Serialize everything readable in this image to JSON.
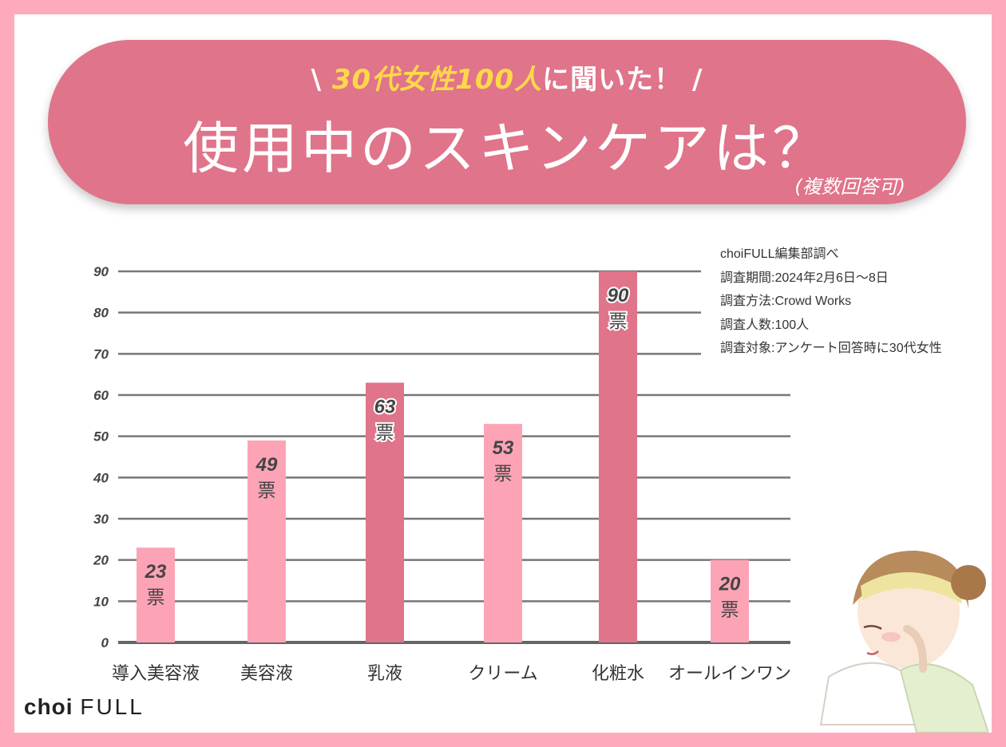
{
  "banner": {
    "subtitle_prefix": "\\ ",
    "subtitle_highlight_1": "30代女性100人",
    "subtitle_mid": "に聞いた！",
    "subtitle_suffix": " /",
    "title": "使用中のスキンケアは？",
    "note": "(複数回答可)"
  },
  "survey_info": {
    "source": "choiFULL編集部調べ",
    "period": "調査期間:2024年2月6日〜8日",
    "method": "調査方法:Crowd Works",
    "count": "調査人数:100人",
    "target": "調査対象:アンケート回答時に30代女性"
  },
  "logo": {
    "choi": "choi",
    "full": "FULL"
  },
  "colors": {
    "light_bar": "#fca4b6",
    "dark_bar": "#e0748a",
    "banner": "#e0748a",
    "frame": "#ffaabb"
  },
  "chart_data": {
    "type": "bar",
    "categories": [
      "導入美容液",
      "美容液",
      "乳液",
      "クリーム",
      "化粧水",
      "オールインワン"
    ],
    "values": [
      23,
      49,
      63,
      53,
      90,
      20
    ],
    "unit_label": "票",
    "highlight": [
      false,
      false,
      true,
      false,
      true,
      false
    ],
    "yticks": [
      0,
      10,
      20,
      30,
      40,
      50,
      60,
      70,
      80,
      90
    ],
    "ylim": [
      0,
      90
    ],
    "grid": true,
    "title": "使用中のスキンケアは？",
    "xlabel": "",
    "ylabel": ""
  }
}
